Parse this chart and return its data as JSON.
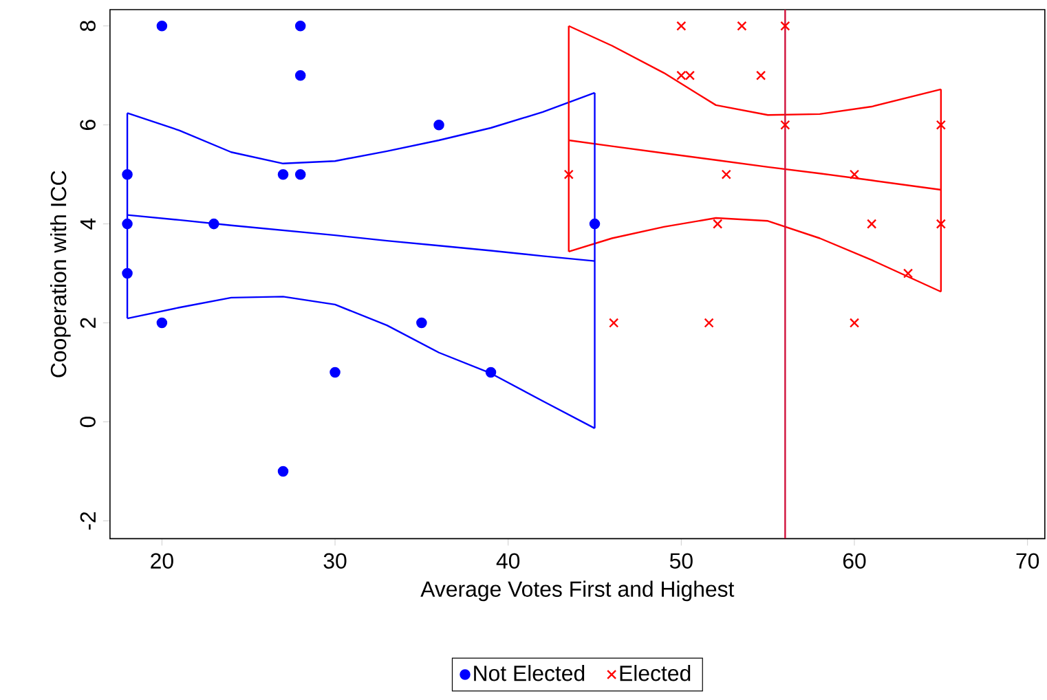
{
  "chart_data": {
    "type": "scatter",
    "xlabel": "Average Votes First and Highest",
    "ylabel": "Cooperation with ICC",
    "xlim": [
      17,
      71
    ],
    "ylim": [
      -2.36,
      8.33
    ],
    "xticks": [
      20,
      30,
      40,
      50,
      60,
      70
    ],
    "yticks": [
      -2,
      0,
      2,
      4,
      6,
      8
    ],
    "legend": "bottom",
    "ref_lines": [
      {
        "axis": "x",
        "value": 56,
        "color": "#d0103a"
      }
    ],
    "series": [
      {
        "name": "Not Elected",
        "type": "scatter",
        "color": "#0000ff",
        "marker": "circle",
        "x": [
          20,
          28,
          28,
          36,
          18,
          27,
          28,
          18,
          23,
          45,
          18,
          20,
          35,
          30,
          39,
          27
        ],
        "values": [
          8,
          8,
          7,
          6,
          5,
          5,
          5,
          4,
          4,
          4,
          3,
          2,
          2,
          1,
          1,
          -1
        ]
      },
      {
        "name": "Elected",
        "type": "scatter",
        "color": "#ff0000",
        "marker": "cross",
        "x": [
          50,
          53.5,
          56,
          50,
          50.5,
          54.6,
          56,
          65,
          43.5,
          52.6,
          60,
          52.1,
          61,
          65,
          63.1,
          46.1,
          51.6,
          60
        ],
        "values": [
          8,
          8,
          8,
          7,
          7,
          7,
          6,
          6,
          5,
          5,
          5,
          4,
          4,
          4,
          3,
          2,
          2,
          2
        ]
      },
      {
        "type": "line",
        "color": "#0000ff",
        "marker": "none",
        "x": [
          18,
          21,
          24,
          27,
          30,
          33,
          36,
          39,
          42,
          45
        ],
        "values": [
          4.18,
          4.08,
          3.97,
          3.87,
          3.77,
          3.66,
          3.56,
          3.46,
          3.35,
          3.25
        ]
      },
      {
        "type": "line",
        "color": "#0000ff",
        "marker": "none",
        "x": [
          18,
          21,
          24,
          27,
          30,
          33,
          36,
          39,
          42,
          45
        ],
        "values": [
          6.24,
          5.89,
          5.45,
          5.22,
          5.27,
          5.47,
          5.69,
          5.94,
          6.26,
          6.65
        ]
      },
      {
        "type": "line",
        "color": "#0000ff",
        "marker": "none",
        "x": [
          18,
          21,
          24,
          27,
          30,
          33,
          36,
          39,
          42,
          45
        ],
        "values": [
          2.09,
          2.31,
          2.51,
          2.53,
          2.37,
          1.95,
          1.4,
          0.98,
          0.42,
          -0.13
        ]
      },
      {
        "type": "line",
        "color": "#ff0000",
        "marker": "none",
        "x": [
          43.5,
          46,
          49,
          52,
          55,
          58,
          61,
          65
        ],
        "values": [
          5.69,
          5.57,
          5.43,
          5.29,
          5.15,
          5.02,
          4.88,
          4.69
        ]
      },
      {
        "type": "line",
        "color": "#ff0000",
        "marker": "none",
        "x": [
          43.5,
          46,
          49,
          52,
          55,
          58,
          61,
          65
        ],
        "values": [
          8.0,
          7.6,
          7.05,
          6.4,
          6.2,
          6.22,
          6.37,
          6.72
        ]
      },
      {
        "type": "line",
        "color": "#ff0000",
        "marker": "none",
        "x": [
          43.5,
          46,
          49,
          52,
          55,
          58,
          61,
          65
        ],
        "values": [
          3.44,
          3.71,
          3.94,
          4.12,
          4.06,
          3.71,
          3.27,
          2.63
        ]
      },
      {
        "type": "line",
        "color": "#0000ff",
        "marker": "none",
        "x": [
          18,
          18
        ],
        "values": [
          6.24,
          2.09
        ]
      },
      {
        "type": "line",
        "color": "#0000ff",
        "marker": "none",
        "x": [
          45,
          45
        ],
        "values": [
          6.65,
          -0.13
        ]
      },
      {
        "type": "line",
        "color": "#ff0000",
        "marker": "none",
        "x": [
          43.5,
          43.5
        ],
        "values": [
          8.0,
          3.44
        ]
      },
      {
        "type": "line",
        "color": "#ff0000",
        "marker": "none",
        "x": [
          65,
          65
        ],
        "values": [
          6.72,
          2.63
        ]
      }
    ]
  }
}
